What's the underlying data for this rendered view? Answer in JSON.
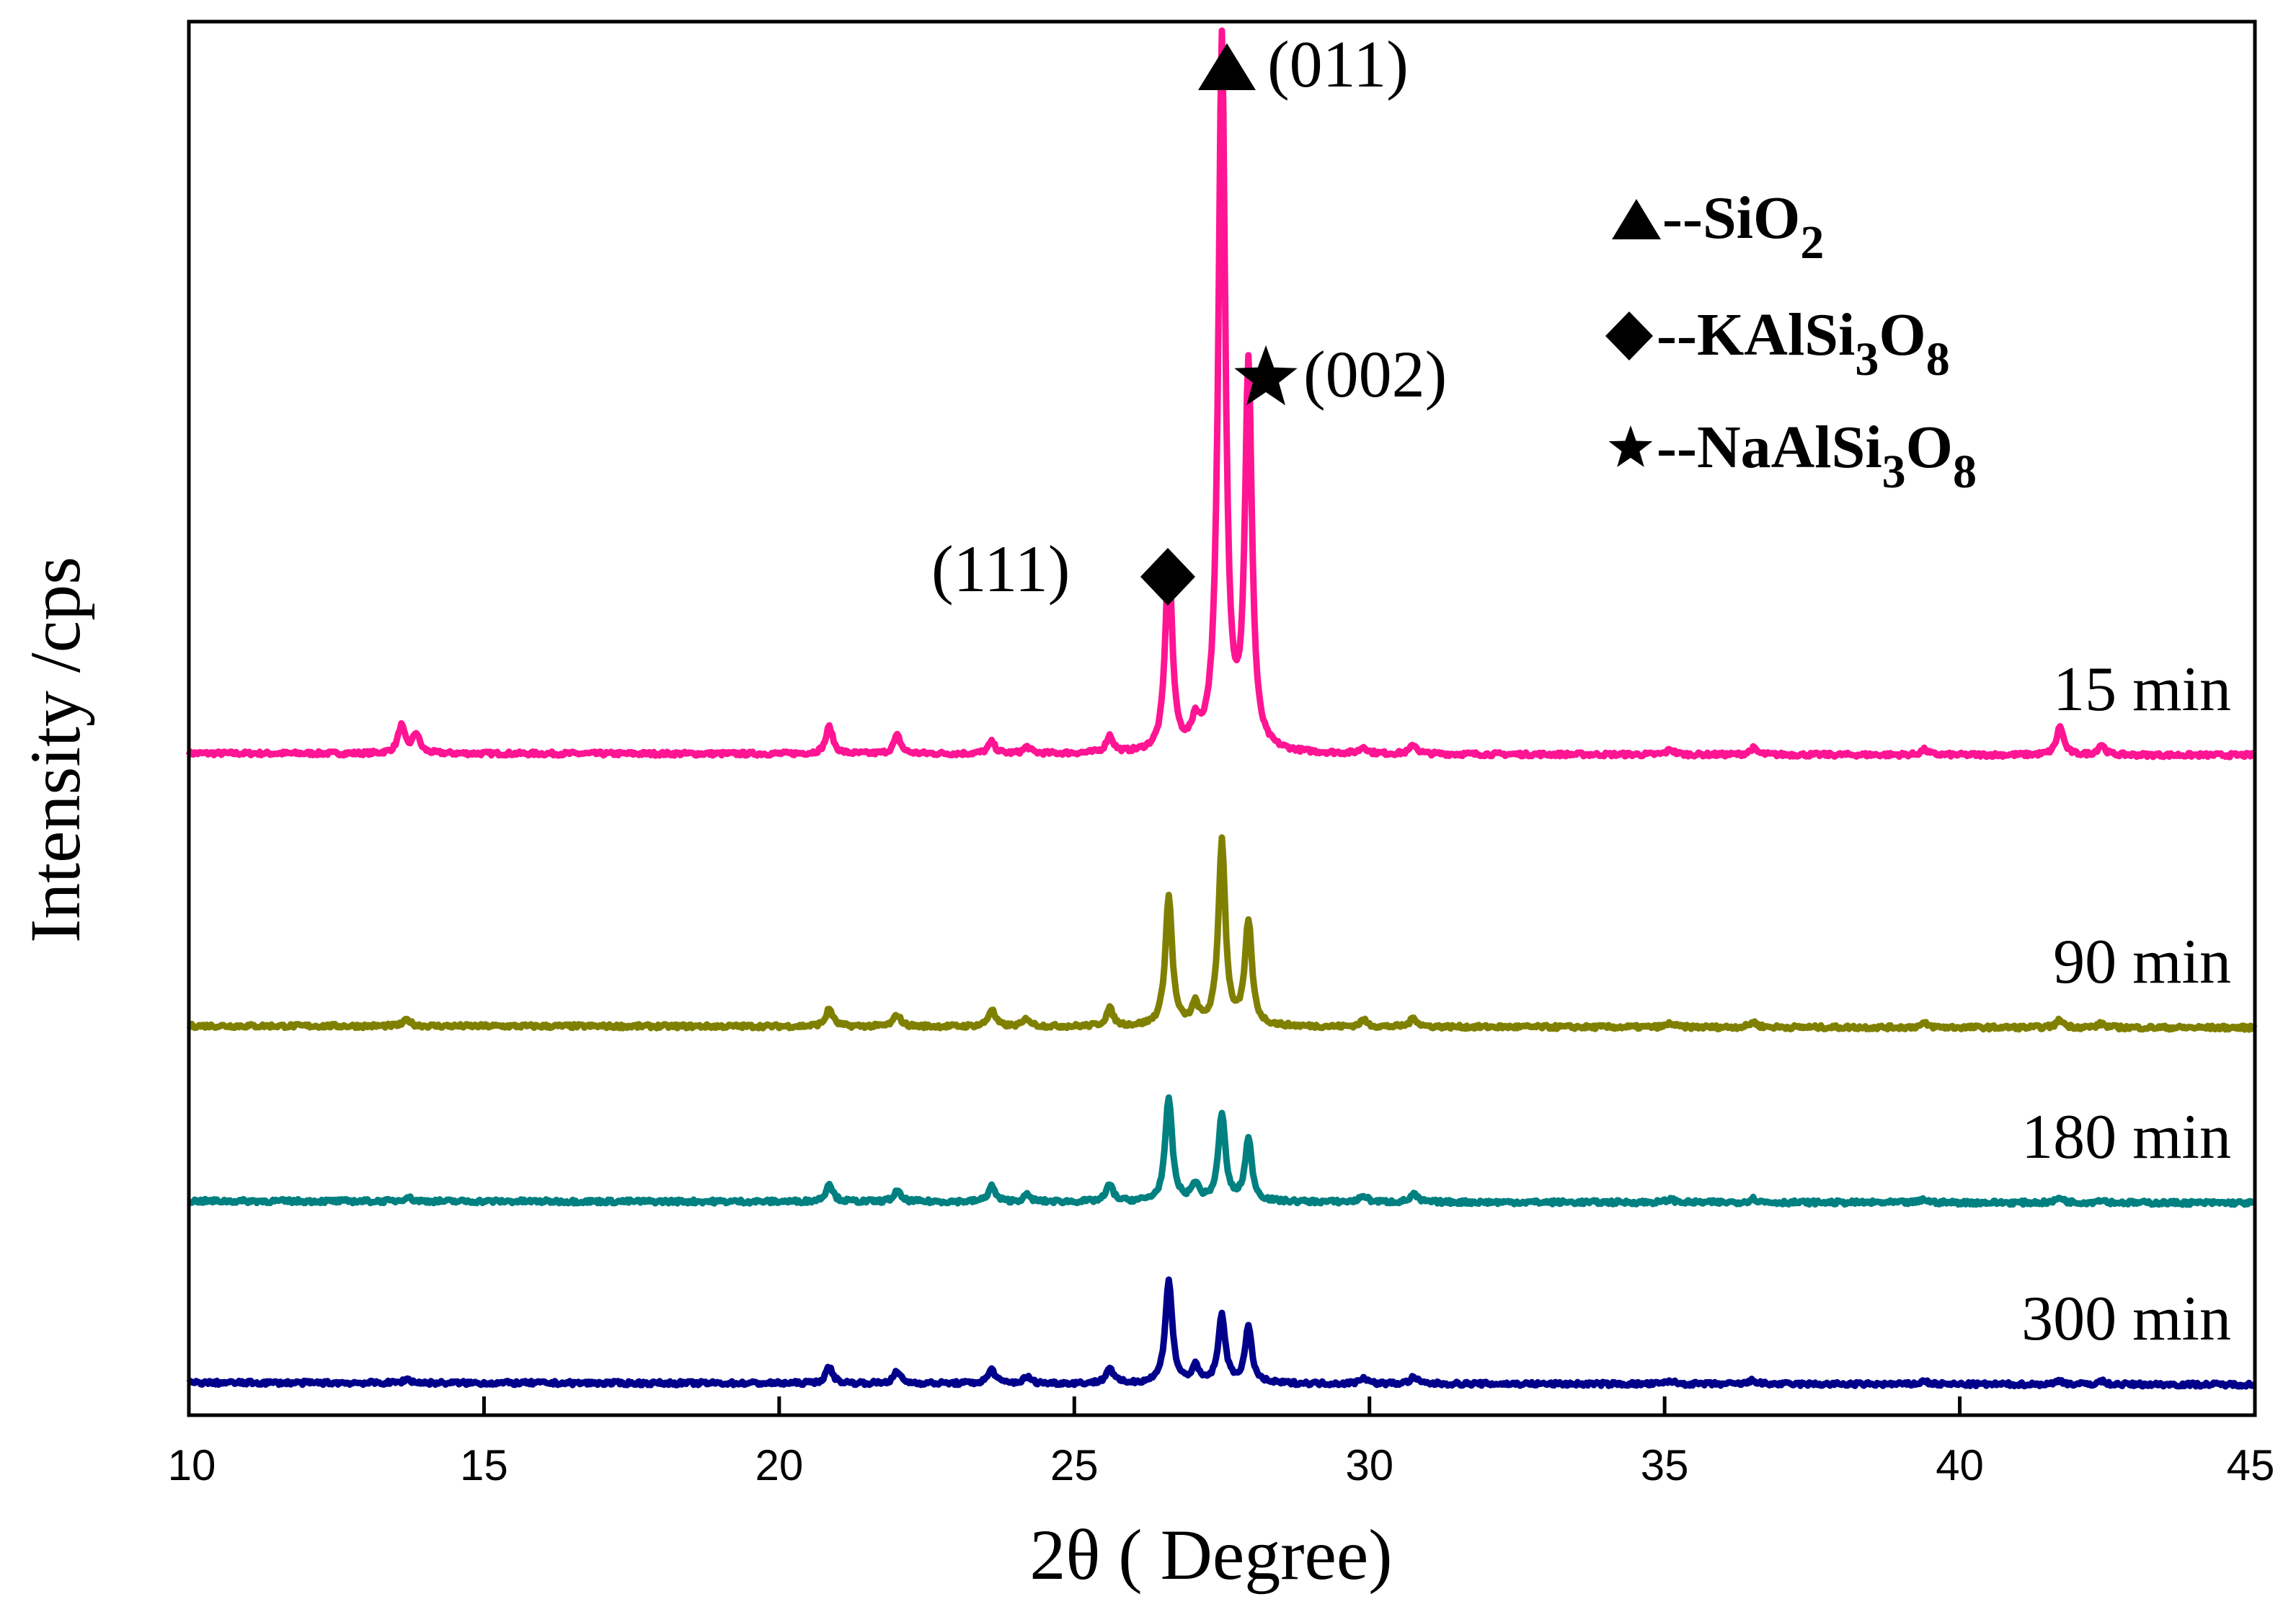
{
  "chart_data": {
    "type": "line",
    "xlabel": "2θ ( Degree)",
    "ylabel": "Intensity /cps",
    "xlim": [
      10,
      45
    ],
    "xticks": [
      10,
      15,
      20,
      25,
      30,
      35,
      40,
      45
    ],
    "yticks_shown": false,
    "legend": {
      "placement": "top-right",
      "entries": [
        {
          "symbol": "triangle",
          "text": "--SiO",
          "sub": "2"
        },
        {
          "symbol": "diamond",
          "text": "--KAlSi",
          "sub": "3",
          "text2": "O",
          "sub2": "8"
        },
        {
          "symbol": "star",
          "text": "--NaAlSi",
          "sub": "3",
          "text2": "O",
          "sub2": "8"
        }
      ]
    },
    "annotations": [
      {
        "symbol": "triangle",
        "label": "(011)",
        "x": 27.5
      },
      {
        "symbol": "star",
        "label": "(002)",
        "x": 28.1
      },
      {
        "symbol": "diamond",
        "label": "(111)",
        "x": 26.6
      }
    ],
    "series": [
      {
        "name": "15 min",
        "color": "#ff1493",
        "offset": 0,
        "peaks": [
          {
            "x": 13.6,
            "h": 0.42
          },
          {
            "x": 13.85,
            "h": 0.3
          },
          {
            "x": 20.85,
            "h": 0.42
          },
          {
            "x": 22.0,
            "h": 0.28
          },
          {
            "x": 23.6,
            "h": 0.18
          },
          {
            "x": 24.2,
            "h": 0.1
          },
          {
            "x": 25.6,
            "h": 0.26
          },
          {
            "x": 26.6,
            "h": 3.0
          },
          {
            "x": 27.05,
            "h": 0.35
          },
          {
            "x": 27.5,
            "h": 11.0
          },
          {
            "x": 27.95,
            "h": 5.9
          },
          {
            "x": 29.9,
            "h": 0.1
          },
          {
            "x": 30.75,
            "h": 0.14
          },
          {
            "x": 35.1,
            "h": 0.08
          },
          {
            "x": 36.5,
            "h": 0.1
          },
          {
            "x": 39.4,
            "h": 0.08
          },
          {
            "x": 41.7,
            "h": 0.44
          },
          {
            "x": 42.4,
            "h": 0.16
          }
        ]
      },
      {
        "name": "90 min",
        "color": "#808000",
        "offset": 4.2,
        "peaks": [
          {
            "x": 13.7,
            "h": 0.1
          },
          {
            "x": 20.85,
            "h": 0.27
          },
          {
            "x": 22.0,
            "h": 0.18
          },
          {
            "x": 23.6,
            "h": 0.26
          },
          {
            "x": 24.2,
            "h": 0.12
          },
          {
            "x": 25.6,
            "h": 0.27
          },
          {
            "x": 26.6,
            "h": 2.0
          },
          {
            "x": 27.05,
            "h": 0.3
          },
          {
            "x": 27.5,
            "h": 2.85
          },
          {
            "x": 27.95,
            "h": 1.6
          },
          {
            "x": 29.9,
            "h": 0.1
          },
          {
            "x": 30.75,
            "h": 0.14
          },
          {
            "x": 35.1,
            "h": 0.06
          },
          {
            "x": 36.5,
            "h": 0.08
          },
          {
            "x": 39.4,
            "h": 0.06
          },
          {
            "x": 41.7,
            "h": 0.12
          },
          {
            "x": 42.4,
            "h": 0.06
          }
        ]
      },
      {
        "name": "180 min",
        "color": "#008080",
        "offset": 6.9,
        "peaks": [
          {
            "x": 13.7,
            "h": 0.07
          },
          {
            "x": 20.85,
            "h": 0.28
          },
          {
            "x": 22.0,
            "h": 0.16
          },
          {
            "x": 23.6,
            "h": 0.24
          },
          {
            "x": 24.2,
            "h": 0.1
          },
          {
            "x": 25.6,
            "h": 0.26
          },
          {
            "x": 26.6,
            "h": 1.6
          },
          {
            "x": 27.05,
            "h": 0.26
          },
          {
            "x": 27.5,
            "h": 1.35
          },
          {
            "x": 27.95,
            "h": 0.95
          },
          {
            "x": 29.9,
            "h": 0.1
          },
          {
            "x": 30.75,
            "h": 0.12
          },
          {
            "x": 35.1,
            "h": 0.05
          },
          {
            "x": 36.5,
            "h": 0.06
          },
          {
            "x": 39.4,
            "h": 0.05
          },
          {
            "x": 41.7,
            "h": 0.08
          },
          {
            "x": 42.4,
            "h": 0.05
          }
        ]
      },
      {
        "name": "300 min",
        "color": "#00008b",
        "offset": 9.7,
        "peaks": [
          {
            "x": 13.7,
            "h": 0.06
          },
          {
            "x": 20.85,
            "h": 0.25
          },
          {
            "x": 22.0,
            "h": 0.18
          },
          {
            "x": 23.6,
            "h": 0.22
          },
          {
            "x": 24.2,
            "h": 0.1
          },
          {
            "x": 25.6,
            "h": 0.24
          },
          {
            "x": 26.6,
            "h": 1.6
          },
          {
            "x": 27.05,
            "h": 0.24
          },
          {
            "x": 27.5,
            "h": 1.05
          },
          {
            "x": 27.95,
            "h": 0.85
          },
          {
            "x": 29.9,
            "h": 0.1
          },
          {
            "x": 30.75,
            "h": 0.1
          },
          {
            "x": 35.1,
            "h": 0.05
          },
          {
            "x": 36.5,
            "h": 0.06
          },
          {
            "x": 39.4,
            "h": 0.05
          },
          {
            "x": 41.7,
            "h": 0.06
          },
          {
            "x": 42.4,
            "h": 0.05
          }
        ]
      }
    ]
  }
}
